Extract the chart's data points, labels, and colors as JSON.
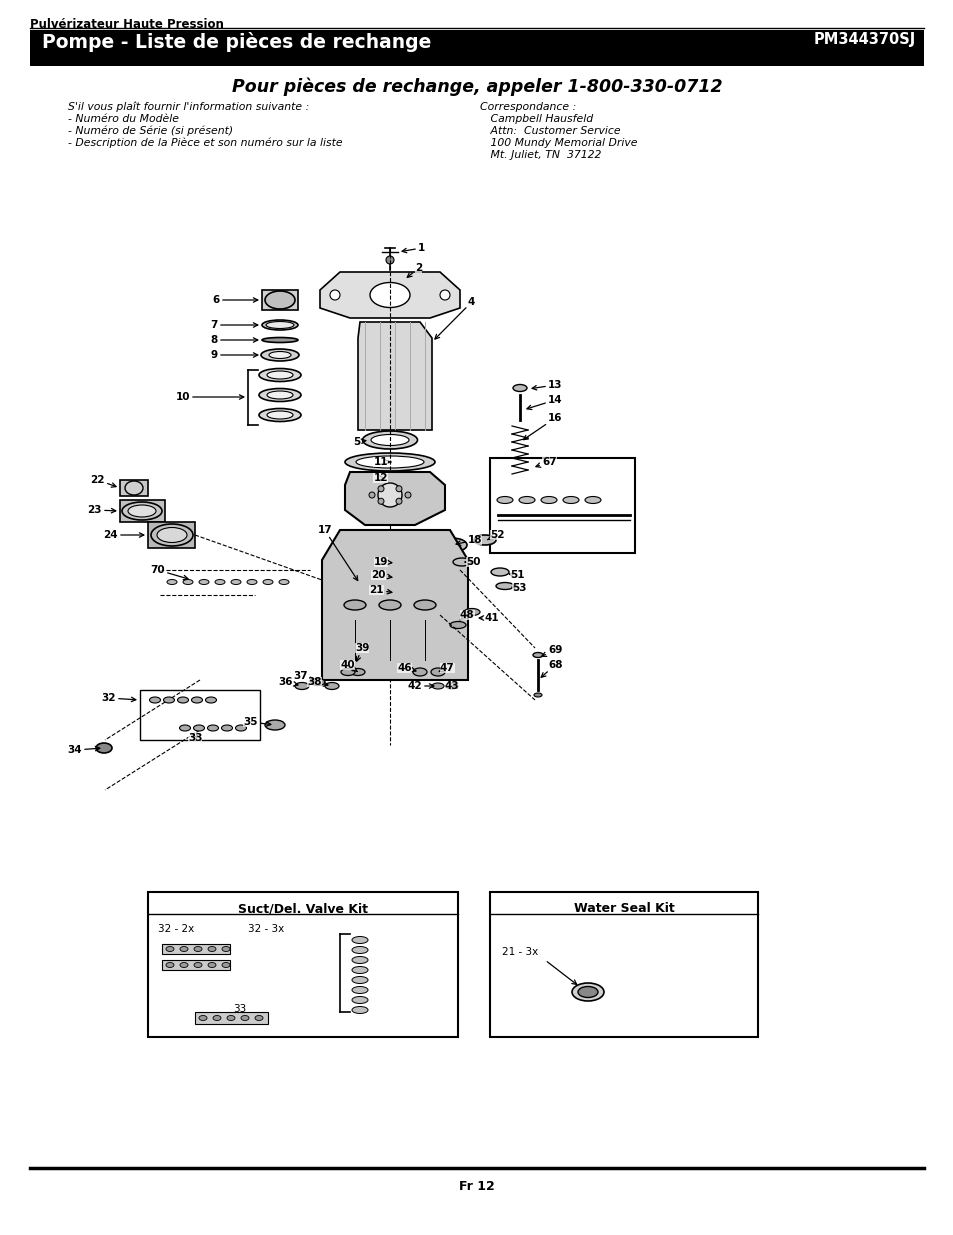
{
  "page_title_small": "Pulvérizateur Haute Pression",
  "header_title": "Pompe - Liste de pièces de rechange",
  "header_part_num": "PM344370SJ",
  "subtitle": "Pour pièces de rechange, appeler 1-800-330-0712",
  "left_col_header": "S'il vous plaît fournir l'information suivante :",
  "left_col_items": [
    "- Numéro du Modèle",
    "- Numéro de Série (si présent)",
    "- Description de la Pièce et son numéro sur la liste"
  ],
  "right_col_header": "Correspondance :",
  "right_col_items": [
    "   Campbell Hausfeld",
    "   Attn:  Customer Service",
    "   100 Mundy Memorial Drive",
    "   Mt. Juliet, TN  37122"
  ],
  "footer_text": "Fr 12",
  "kit1_title": "Suct/Del. Valve Kit",
  "kit2_title": "Water Seal Kit",
  "bg_color": "#ffffff",
  "header_bg": "#000000",
  "header_fg": "#ffffff",
  "text_color": "#000000"
}
